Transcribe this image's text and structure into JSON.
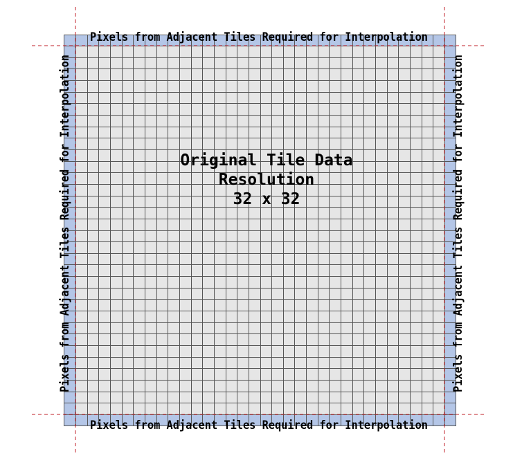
{
  "diagram": {
    "center_lines": [
      "Original Tile Data",
      "Resolution",
      "32 x 32"
    ],
    "labels": {
      "top": "Pixels from Adjacent Tiles Required for Interpolation",
      "bottom": "Pixels from Adjacent Tiles Required for Interpolation",
      "left": "Pixels from Adjacent Tiles Required for Interpolation",
      "right": "Pixels from Adjacent Tiles Required for Interpolation"
    },
    "tile_resolution": 32,
    "colors": {
      "border_band": "#b4c6e7",
      "tile_fill": "#e6e6e6",
      "grid_line": "#555555",
      "dashed_guides": "#c0202a"
    }
  }
}
